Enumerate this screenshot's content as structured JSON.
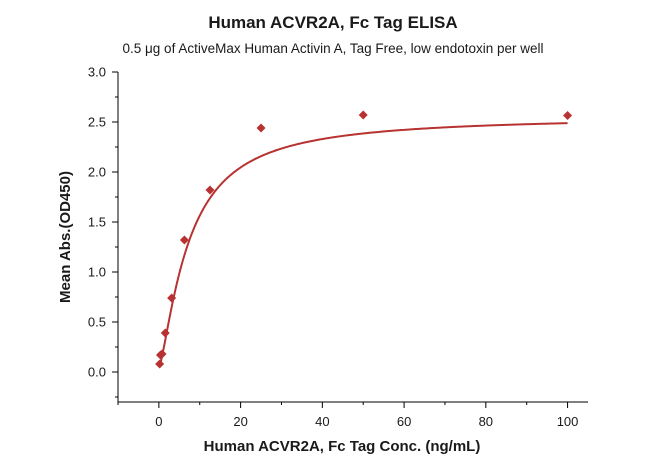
{
  "chart_data": {
    "type": "scatter",
    "title": "Human ACVR2A, Fc Tag ELISA",
    "subtitle": "0.5 μg of ActiveMax Human Activin A, Tag Free, low endotoxin per well",
    "xlabel": "Human ACVR2A, Fc Tag Conc. (ng/mL)",
    "ylabel": "Mean Abs.(OD450)",
    "xlim": [
      -10,
      105
    ],
    "ylim": [
      -0.3,
      3.0
    ],
    "xticks": [
      0,
      20,
      40,
      60,
      80,
      100
    ],
    "yticks": [
      0.0,
      0.5,
      1.0,
      1.5,
      2.0,
      2.5,
      3.0
    ],
    "xtick_labels": [
      "0",
      "20",
      "40",
      "60",
      "80",
      "100"
    ],
    "ytick_labels": [
      "0.0",
      "0.5",
      "1.0",
      "1.5",
      "2.0",
      "2.5",
      "3.0"
    ],
    "series": [
      {
        "name": "Human ACVR2A, Fc Tag",
        "marker": "diamond",
        "color": "#b83232",
        "x": [
          0.195,
          0.391,
          0.781,
          1.563,
          3.125,
          6.25,
          12.5,
          25,
          50,
          100
        ],
        "y": [
          0.08,
          0.17,
          0.18,
          0.39,
          0.74,
          1.32,
          1.82,
          2.44,
          2.57,
          2.565
        ]
      }
    ],
    "fit_curve": {
      "model": "4PL",
      "color": "#b83232",
      "bottom": 0.04,
      "top": 2.56,
      "ec50": 7.3,
      "hill": 1.35
    }
  }
}
